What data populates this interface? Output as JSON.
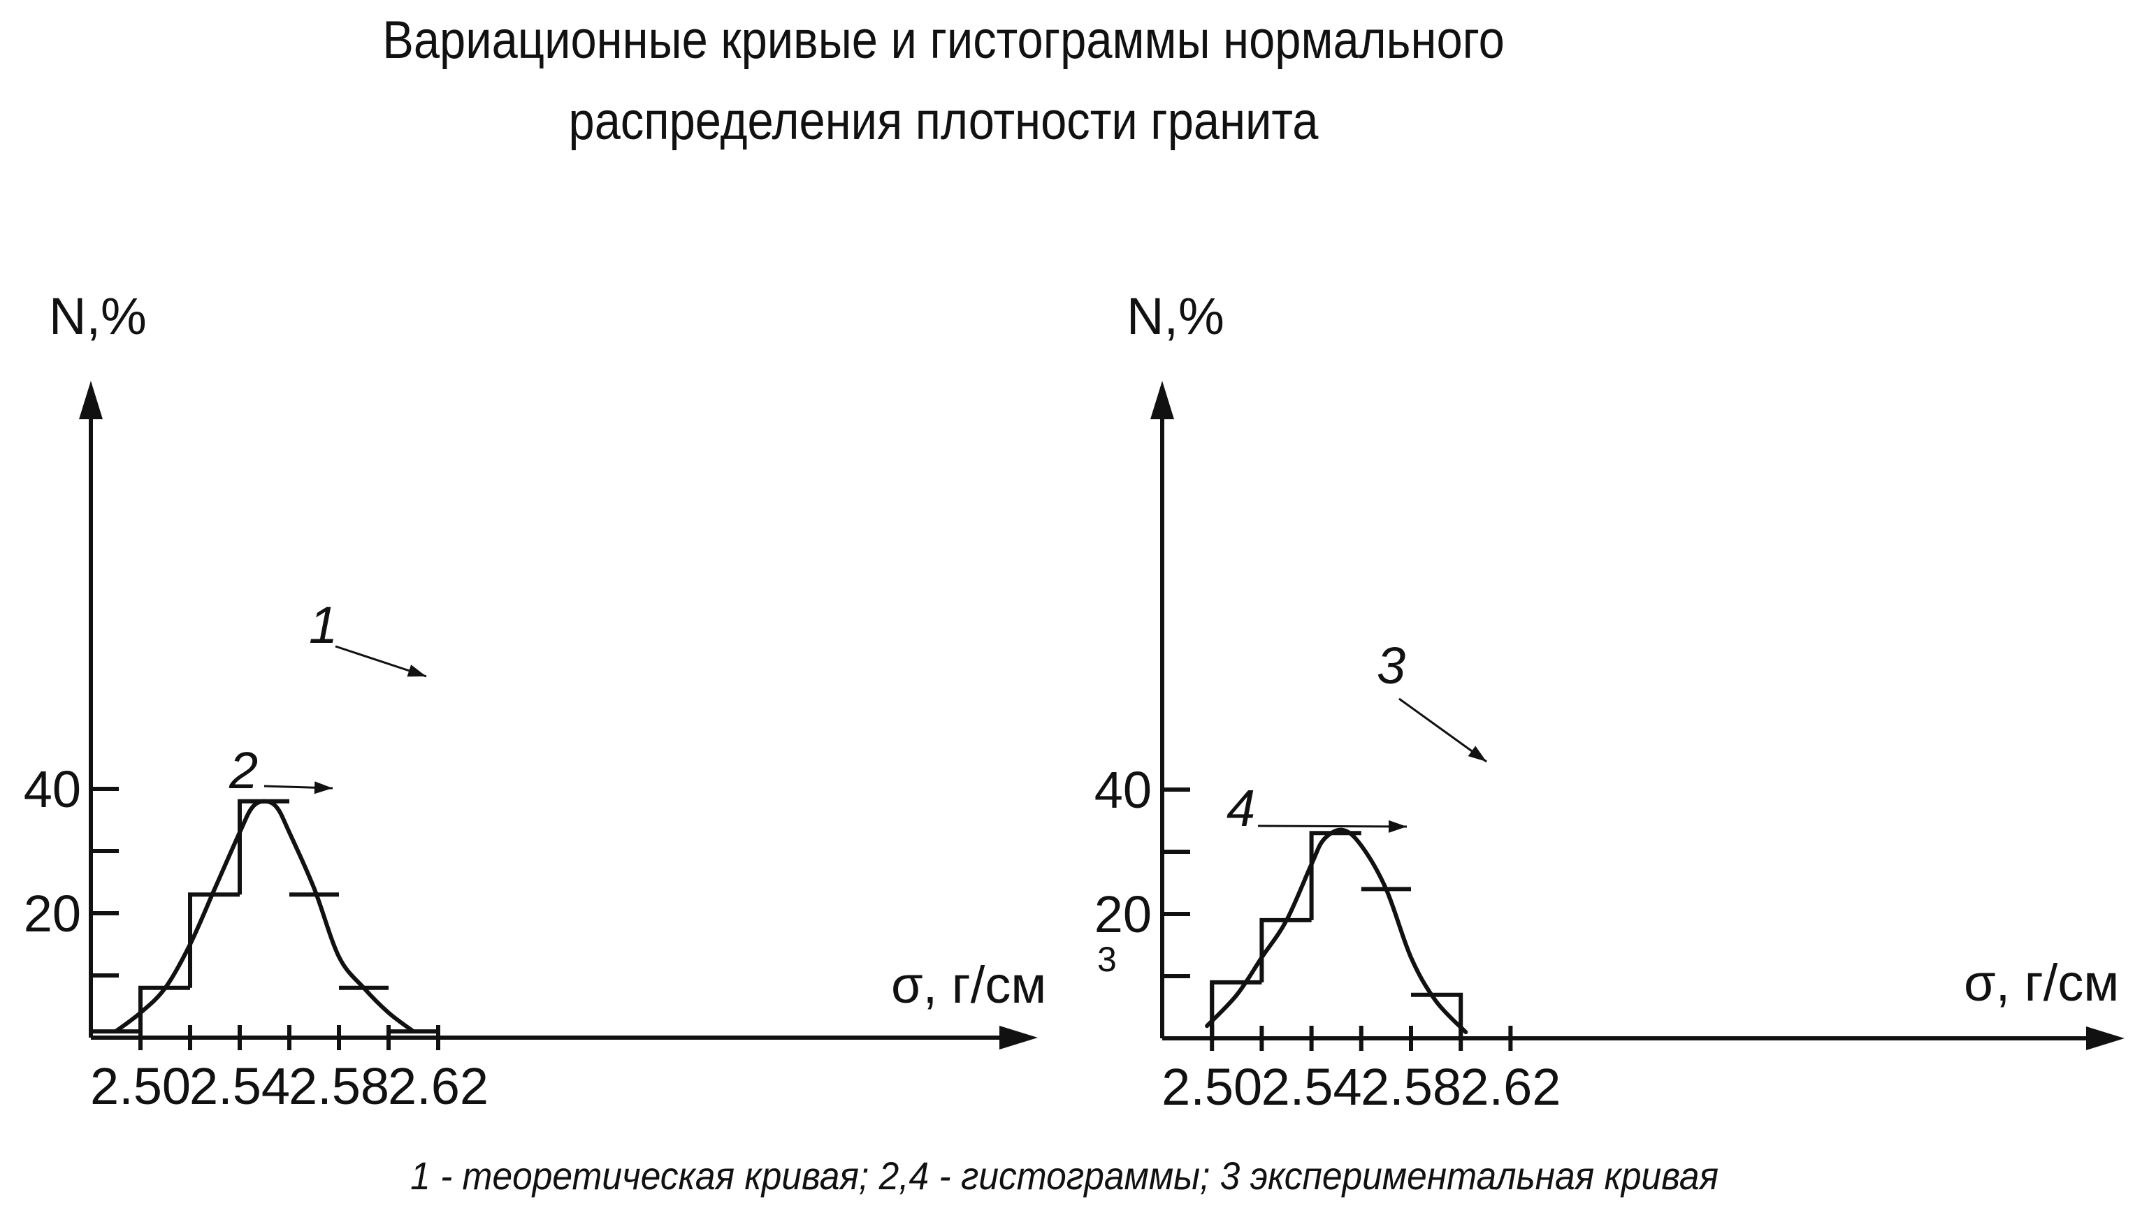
{
  "title_lines": [
    "Вариационные кривые и гистограммы нормального",
    "распределения плотности гранита"
  ],
  "caption": "1 - теоретическая кривая; 2,4 - гистограммы; 3 экспериментальная кривая",
  "chart_data": [
    {
      "type": "bar",
      "ylabel": "N,%",
      "xlabel": "σ, г/см",
      "xlabel_sup": "3",
      "x_ticks": [
        "2.50",
        "2.54",
        "2.58",
        "2.62"
      ],
      "y_ticks": [
        "20",
        "40"
      ],
      "xlim": [
        2.48,
        2.64
      ],
      "ylim": [
        0,
        52
      ],
      "grid": false,
      "histogram": {
        "label": "2",
        "bin_edges": [
          2.48,
          2.5,
          2.52,
          2.54,
          2.56,
          2.58,
          2.6,
          2.62
        ],
        "values": [
          1,
          8,
          23,
          38,
          23,
          8,
          1
        ]
      },
      "curve": {
        "label": "1",
        "x": [
          2.49,
          2.5,
          2.51,
          2.52,
          2.53,
          2.54,
          2.545,
          2.55,
          2.555,
          2.56,
          2.57,
          2.58,
          2.59,
          2.6,
          2.61
        ],
        "y": [
          1,
          4,
          8,
          15,
          24,
          33,
          37,
          38,
          37,
          33,
          24,
          13,
          8,
          4,
          1
        ]
      }
    },
    {
      "type": "bar",
      "ylabel": "N,%",
      "xlabel": "σ, г/см",
      "xlabel_sup": "3",
      "x_ticks": [
        "2.50",
        "2.54",
        "2.58",
        "2.62"
      ],
      "y_ticks": [
        "20",
        "40"
      ],
      "xlim": [
        2.48,
        2.64
      ],
      "ylim": [
        0,
        52
      ],
      "grid": false,
      "histogram": {
        "label": "4",
        "bin_edges": [
          2.5,
          2.52,
          2.54,
          2.56,
          2.58,
          2.6
        ],
        "values": [
          9,
          19,
          33,
          24,
          7
        ]
      },
      "curve": {
        "label": "3",
        "x": [
          2.498,
          2.51,
          2.52,
          2.53,
          2.54,
          2.545,
          2.5525,
          2.56,
          2.57,
          2.58,
          2.59,
          2.602
        ],
        "y": [
          2,
          7,
          13,
          19,
          28,
          32,
          33.5,
          31,
          24,
          13,
          6,
          1
        ]
      }
    }
  ]
}
